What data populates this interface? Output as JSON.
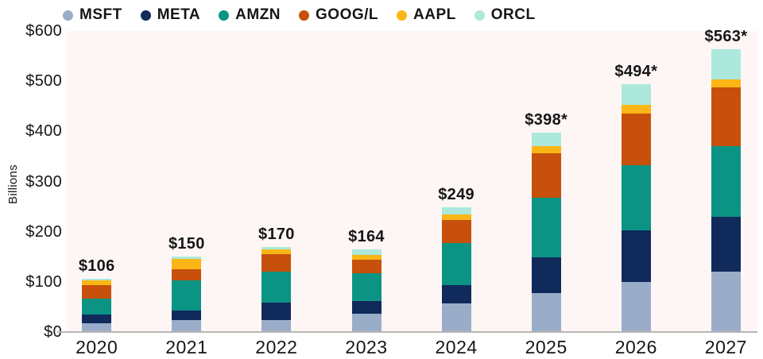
{
  "chart_data": {
    "type": "bar",
    "stacked": true,
    "title": "",
    "ylabel": "Billions",
    "xlabel": "",
    "ylim": [
      0,
      600
    ],
    "y_tick_step": 100,
    "y_tick_prefix": "$",
    "grid": false,
    "legend_position": "top",
    "plot_background": "#fdf6f5",
    "axis_color": "#b9b6b6",
    "categories": [
      "2020",
      "2021",
      "2022",
      "2023",
      "2024",
      "2025",
      "2026",
      "2027"
    ],
    "series": [
      {
        "name": "MSFT",
        "color": "#9aadc8",
        "values": [
          18,
          24,
          24,
          37,
          57,
          77,
          99,
          120
        ]
      },
      {
        "name": "META",
        "color": "#102a5c",
        "values": [
          17,
          19,
          34,
          25,
          36,
          72,
          103,
          109
        ]
      },
      {
        "name": "AMZN",
        "color": "#0b9483",
        "values": [
          32,
          60,
          62,
          55,
          84,
          119,
          130,
          142
        ]
      },
      {
        "name": "GOOG/L",
        "color": "#c6500c",
        "values": [
          27,
          22,
          35,
          27,
          46,
          88,
          103,
          116
        ]
      },
      {
        "name": "AAPL",
        "color": "#fbb616",
        "values": [
          9,
          21,
          9,
          10,
          12,
          15,
          18,
          17
        ]
      },
      {
        "name": "ORCL",
        "color": "#ace8db",
        "values": [
          3,
          4,
          6,
          10,
          14,
          27,
          41,
          59
        ]
      }
    ],
    "totals": [
      "$106",
      "$150",
      "$170",
      "$164",
      "$249",
      "$398*",
      "$494*",
      "$563*"
    ],
    "y_tick_labels": [
      "$0",
      "$100",
      "$200",
      "$300",
      "$400",
      "$500",
      "$600"
    ]
  }
}
